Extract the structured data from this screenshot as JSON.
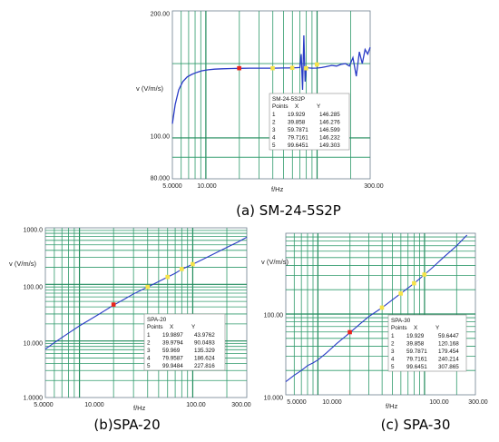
{
  "chart_data": [
    {
      "type": "line",
      "caption": "(a) SM-24-5S2P",
      "xlabel": "f/Hz",
      "ylabel": "v (V/m/s)",
      "x_scale": "log",
      "y_scale": "log",
      "xlim": [
        5,
        300
      ],
      "ylim": [
        80,
        200
      ],
      "x_tick_labels": [
        "5.0000",
        "10.000",
        "300.00"
      ],
      "y_tick_labels": [
        "200.00",
        "100.00",
        "80.000"
      ],
      "color": "#2a3cc7",
      "series": [
        {
          "x": [
            5.0,
            5.3,
            5.7,
            6.2,
            6.8,
            7.5,
            8.3,
            9.2,
            10.5,
            12,
            14,
            17,
            20,
            25,
            30,
            35,
            40,
            45,
            50,
            55,
            60,
            65,
            70,
            72,
            74,
            76,
            78,
            80,
            85,
            90,
            100,
            110,
            120,
            135,
            150,
            165,
            180,
            195,
            210,
            225,
            240,
            255,
            270,
            285,
            300
          ],
          "y": [
            108,
            120,
            130,
            136,
            139.5,
            141.5,
            143,
            144.2,
            145,
            145.5,
            145.8,
            146,
            146.2,
            146.3,
            146.3,
            146.3,
            146.3,
            146.4,
            146.5,
            146.5,
            146.6,
            146.7,
            146.8,
            158,
            130,
            175,
            136,
            147,
            146.5,
            146.3,
            146.4,
            146.8,
            147.5,
            148.5,
            148,
            149.5,
            150,
            148,
            155,
            140,
            160,
            150,
            162,
            158,
            164
          ]
        }
      ],
      "table": {
        "title": "SM-24-5S2P",
        "headers": [
          "Points",
          "X",
          "Y"
        ],
        "rows": [
          [
            "1",
            "19.929",
            "146.285"
          ],
          [
            "2",
            "39.858",
            "146.276"
          ],
          [
            "3",
            "59.7871",
            "146.599"
          ],
          [
            "4",
            "79.7161",
            "146.232"
          ],
          [
            "5",
            "99.6451",
            "149.303"
          ]
        ]
      },
      "marked_points": [
        {
          "x": 19.929,
          "y": 146.285,
          "color": "#e8231c"
        },
        {
          "x": 39.858,
          "y": 146.276,
          "color": "#f6e34a"
        },
        {
          "x": 59.7871,
          "y": 146.599,
          "color": "#f6e34a"
        },
        {
          "x": 79.7161,
          "y": 146.232,
          "color": "#f6e34a"
        },
        {
          "x": 99.6451,
          "y": 149.303,
          "color": "#f6e34a"
        }
      ]
    },
    {
      "type": "line",
      "caption": "(b)SPA-20",
      "xlabel": "f/Hz",
      "ylabel": "v (V/m/s)",
      "x_scale": "log",
      "y_scale": "log",
      "xlim": [
        5,
        300
      ],
      "ylim": [
        1,
        1000
      ],
      "x_tick_labels": [
        "5.0000",
        "10.000",
        "100.00",
        "300.00"
      ],
      "y_tick_labels": [
        "1000.0",
        "100.00",
        "10.000",
        "1.0000"
      ],
      "color": "#2a3cc7",
      "series": [
        {
          "x": [
            5,
            6,
            7,
            8,
            10,
            12,
            15,
            20,
            25,
            30,
            40,
            50,
            60,
            70,
            80,
            100,
            120,
            150,
            200,
            250,
            300
          ],
          "y": [
            7.2,
            9.3,
            11.5,
            13.7,
            18.5,
            23.0,
            30.0,
            43.0,
            55.0,
            68.0,
            90.0,
            112,
            135,
            157,
            185,
            227,
            270,
            338,
            450,
            560,
            680
          ]
        }
      ],
      "table": {
        "title": "SPA-20",
        "headers": [
          "Points",
          "X",
          "Y"
        ],
        "rows": [
          [
            "1",
            "19.9897",
            "43.9762"
          ],
          [
            "2",
            "39.9794",
            "90.0493"
          ],
          [
            "3",
            "59.969",
            "135.329"
          ],
          [
            "4",
            "79.9587",
            "186.624"
          ],
          [
            "5",
            "99.9484",
            "227.816"
          ]
        ]
      },
      "marked_points": [
        {
          "x": 19.9897,
          "y": 43.9762,
          "color": "#e8231c"
        },
        {
          "x": 39.9794,
          "y": 90.0493,
          "color": "#f6e34a"
        },
        {
          "x": 59.969,
          "y": 135.329,
          "color": "#f6e34a"
        },
        {
          "x": 79.9587,
          "y": 186.624,
          "color": "#f6e34a"
        },
        {
          "x": 99.9484,
          "y": 227.816,
          "color": "#f6e34a"
        }
      ]
    },
    {
      "type": "line",
      "caption": "(c) SPA-30",
      "xlabel": "f/Hz",
      "ylabel": "v (V/m/s)",
      "x_scale": "log",
      "y_scale": "log",
      "xlim": [
        5,
        300
      ],
      "ylim": [
        10,
        1000
      ],
      "x_tick_labels": [
        "5.0000",
        "10.000",
        "100.00",
        "300.00"
      ],
      "y_tick_labels": [
        "100.00",
        "10.000"
      ],
      "color": "#2a3cc7",
      "series": [
        {
          "x": [
            5,
            6,
            7,
            8,
            9,
            10,
            12,
            15,
            20,
            25,
            30,
            40,
            50,
            60,
            80,
            100,
            120,
            150,
            200,
            250
          ],
          "y": [
            14.5,
            17.5,
            20.0,
            23.0,
            24.8,
            27.0,
            33.0,
            43.0,
            59.0,
            76.0,
            93.0,
            120,
            150,
            180,
            240,
            308,
            380,
            500,
            700,
            950
          ]
        }
      ],
      "table": {
        "title": "SPA-30",
        "headers": [
          "Points",
          "X",
          "Y"
        ],
        "rows": [
          [
            "1",
            "19.929",
            "59.6447"
          ],
          [
            "2",
            "39.858",
            "120.168"
          ],
          [
            "3",
            "59.7871",
            "179.454"
          ],
          [
            "4",
            "79.7161",
            "240.214"
          ],
          [
            "5",
            "99.6451",
            "307.865"
          ]
        ]
      },
      "marked_points": [
        {
          "x": 19.929,
          "y": 59.6447,
          "color": "#e8231c"
        },
        {
          "x": 39.858,
          "y": 120.168,
          "color": "#f6e34a"
        },
        {
          "x": 59.7871,
          "y": 179.454,
          "color": "#f6e34a"
        },
        {
          "x": 79.7161,
          "y": 240.214,
          "color": "#f6e34a"
        },
        {
          "x": 99.6451,
          "y": 307.865,
          "color": "#f6e34a"
        }
      ]
    }
  ]
}
